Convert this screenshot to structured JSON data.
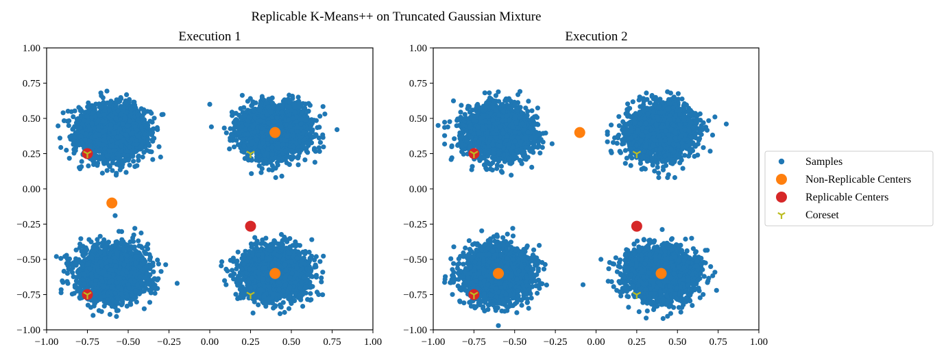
{
  "figure": {
    "suptitle": "Replicable K-Means++ on Truncated Gaussian Mixture"
  },
  "legend": {
    "entries": [
      {
        "label": "Samples",
        "marker": "dot",
        "color": "#1f77b4"
      },
      {
        "label": "Non-Replicable Centers",
        "marker": "big-dot",
        "color": "#ff7f0e"
      },
      {
        "label": "Replicable Centers",
        "marker": "big-dot",
        "color": "#d62728"
      },
      {
        "label": "Coreset",
        "marker": "tri-down",
        "color": "#bcbd22"
      }
    ]
  },
  "chart_data": [
    {
      "type": "scatter",
      "title": "Execution 1",
      "xlim": [
        -1.0,
        1.0
      ],
      "ylim": [
        -1.0,
        1.0
      ],
      "xticks": [
        "−1.00",
        "−0.75",
        "−0.50",
        "−0.25",
        "0.00",
        "0.25",
        "0.50",
        "0.75",
        "1.00"
      ],
      "yticks": [
        "1.00",
        "0.75",
        "0.50",
        "0.25",
        "0.00",
        "−0.25",
        "−0.50",
        "−0.75",
        "−1.00"
      ],
      "grid": false,
      "series": [
        {
          "name": "Samples",
          "clusters": [
            {
              "center": [
                -0.6,
                0.4
              ],
              "spread": [
                0.1,
                0.09
              ],
              "count": 2500
            },
            {
              "center": [
                0.4,
                0.4
              ],
              "spread": [
                0.1,
                0.09
              ],
              "count": 2500
            },
            {
              "center": [
                -0.6,
                -0.6
              ],
              "spread": [
                0.1,
                0.09
              ],
              "count": 2500
            },
            {
              "center": [
                0.4,
                -0.6
              ],
              "spread": [
                0.1,
                0.09
              ],
              "count": 2500
            }
          ],
          "outliers": [
            [
              0.0,
              0.6
            ],
            [
              -0.2,
              -0.67
            ],
            [
              0.01,
              0.44
            ],
            [
              0.78,
              0.42
            ],
            [
              -0.94,
              -0.48
            ],
            [
              -0.58,
              -0.19
            ],
            [
              0.1,
              -0.68
            ]
          ]
        },
        {
          "name": "Non-Replicable Centers",
          "points": [
            [
              0.4,
              0.4
            ],
            [
              -0.6,
              -0.1
            ],
            [
              0.4,
              -0.6
            ]
          ]
        },
        {
          "name": "Replicable Centers",
          "points": [
            [
              -0.75,
              0.25
            ],
            [
              0.25,
              -0.265
            ],
            [
              -0.75,
              -0.75
            ]
          ]
        },
        {
          "name": "Coreset",
          "points": [
            [
              -0.75,
              0.25
            ],
            [
              0.25,
              0.25
            ],
            [
              -0.75,
              -0.75
            ],
            [
              0.25,
              -0.75
            ]
          ]
        }
      ]
    },
    {
      "type": "scatter",
      "title": "Execution 2",
      "xlim": [
        -1.0,
        1.0
      ],
      "ylim": [
        -1.0,
        1.0
      ],
      "xticks": [
        "−1.00",
        "−0.75",
        "−0.50",
        "−0.25",
        "0.00",
        "0.25",
        "0.50",
        "0.75",
        "1.00"
      ],
      "yticks": [
        "1.00",
        "0.75",
        "0.50",
        "0.25",
        "0.00",
        "−0.25",
        "−0.50",
        "−0.75",
        "−1.00"
      ],
      "grid": false,
      "series": [
        {
          "name": "Samples",
          "clusters": [
            {
              "center": [
                -0.6,
                0.4
              ],
              "spread": [
                0.1,
                0.09
              ],
              "count": 2500
            },
            {
              "center": [
                0.4,
                0.4
              ],
              "spread": [
                0.1,
                0.09
              ],
              "count": 2500
            },
            {
              "center": [
                -0.6,
                -0.6
              ],
              "spread": [
                0.1,
                0.09
              ],
              "count": 2500
            },
            {
              "center": [
                0.4,
                -0.6
              ],
              "spread": [
                0.1,
                0.09
              ],
              "count": 2500
            }
          ],
          "outliers": [
            [
              -0.27,
              0.32
            ],
            [
              0.8,
              0.46
            ],
            [
              -0.97,
              0.45
            ],
            [
              -0.08,
              -0.68
            ],
            [
              -0.6,
              -0.97
            ],
            [
              0.03,
              -0.5
            ],
            [
              0.74,
              -0.72
            ]
          ]
        },
        {
          "name": "Non-Replicable Centers",
          "points": [
            [
              -0.1,
              0.4
            ],
            [
              -0.6,
              -0.6
            ],
            [
              0.4,
              -0.6
            ]
          ]
        },
        {
          "name": "Replicable Centers",
          "points": [
            [
              -0.75,
              0.25
            ],
            [
              0.25,
              -0.265
            ],
            [
              -0.75,
              -0.75
            ]
          ]
        },
        {
          "name": "Coreset",
          "points": [
            [
              -0.75,
              0.25
            ],
            [
              0.25,
              0.25
            ],
            [
              -0.75,
              -0.75
            ],
            [
              0.25,
              -0.75
            ]
          ]
        }
      ]
    }
  ]
}
